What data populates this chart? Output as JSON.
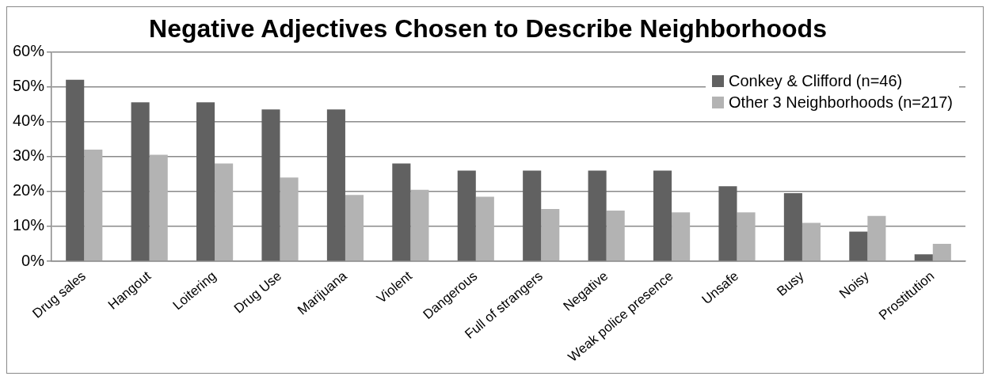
{
  "chart_data": {
    "type": "bar",
    "title": "Negative Adjectives Chosen to Describe Neighborhoods",
    "categories": [
      "Drug sales",
      "Hangout",
      "Loitering",
      "Drug Use",
      "Marijuana",
      "Violent",
      "Dangerous",
      "Full of strangers",
      "Negative",
      "Weak police presence",
      "Unsafe",
      "Busy",
      "Noisy",
      "Prostitution"
    ],
    "series": [
      {
        "name": "Conkey & Clifford (n=46)",
        "color": "#616161",
        "values": [
          52,
          45.5,
          45.5,
          43.5,
          43.5,
          28,
          26,
          26,
          26,
          26,
          21.5,
          19.5,
          8.5,
          2
        ]
      },
      {
        "name": "Other 3 Neighborhoods (n=217)",
        "color": "#b3b3b3",
        "values": [
          32,
          30.5,
          28,
          24,
          19,
          20.5,
          18.5,
          15,
          14.5,
          14,
          14,
          11,
          13,
          5
        ]
      }
    ],
    "ylim": [
      0,
      60
    ],
    "yticks": [
      {
        "value": 0,
        "label": "0%"
      },
      {
        "value": 10,
        "label": "10%"
      },
      {
        "value": 20,
        "label": "20%"
      },
      {
        "value": 30,
        "label": "30%"
      },
      {
        "value": 40,
        "label": "40%"
      },
      {
        "value": 50,
        "label": "50%"
      },
      {
        "value": 60,
        "label": "60%"
      }
    ],
    "grid": "y",
    "legend": "top right"
  }
}
